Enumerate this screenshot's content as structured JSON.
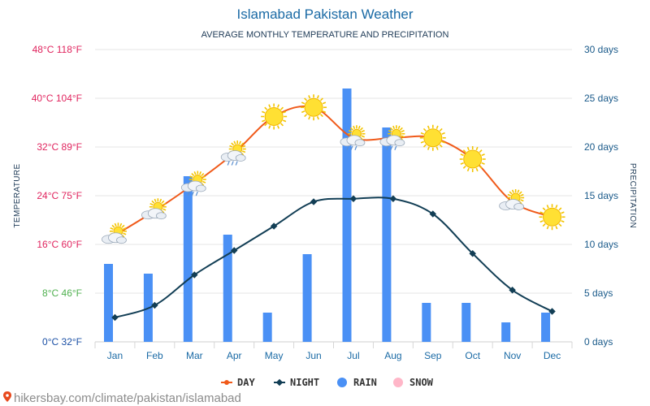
{
  "title": "Islamabad Pakistan Weather",
  "subtitle": "AVERAGE MONTHLY TEMPERATURE AND PRECIPITATION",
  "source": "hikersbay.com/climate/pakistan/islamabad",
  "colors": {
    "day": "#f05a1a",
    "night": "#123e55",
    "rain": "#4a90f5",
    "snow": "#ffb6c8"
  },
  "chart_data": {
    "type": "line",
    "categories": [
      "Jan",
      "Feb",
      "Mar",
      "Apr",
      "May",
      "Jun",
      "Jul",
      "Aug",
      "Sep",
      "Oct",
      "Nov",
      "Dec"
    ],
    "series": [
      {
        "name": "DAY",
        "type": "line",
        "axis": "temperature",
        "values": [
          17.5,
          21.5,
          26,
          31,
          37,
          38.5,
          33.5,
          33.5,
          33.5,
          30,
          23,
          20.5
        ]
      },
      {
        "name": "NIGHT",
        "type": "line",
        "axis": "temperature",
        "values": [
          4,
          6,
          11,
          15,
          19,
          23,
          23.5,
          23.5,
          21,
          14.5,
          8.5,
          5
        ]
      },
      {
        "name": "RAIN",
        "type": "bar",
        "axis": "precipitation",
        "values": [
          8,
          7,
          17,
          11,
          3,
          9,
          26,
          22,
          4,
          4,
          2,
          3
        ]
      },
      {
        "name": "SNOW",
        "type": "bar",
        "axis": "precipitation",
        "values": [
          0,
          0,
          0,
          0,
          0,
          0,
          0,
          0,
          0,
          0,
          0,
          0
        ]
      }
    ],
    "weather_icons": [
      "partly-cloudy",
      "partly-cloudy",
      "partly-cloudy-rain",
      "partly-cloudy-rain",
      "sunny",
      "sunny",
      "partly-cloudy-rain",
      "partly-cloudy-rain",
      "sunny",
      "sunny",
      "partly-cloudy",
      "sunny"
    ],
    "left_axis": {
      "label": "TEMPERATURE",
      "ylim": [
        0,
        48
      ],
      "ticks": [
        {
          "value": 0,
          "label": "0°C 32°F",
          "color": "#1a4fa5"
        },
        {
          "value": 8,
          "label": "8°C 46°F",
          "color": "#4fb04f"
        },
        {
          "value": 16,
          "label": "16°C 60°F",
          "color": "#e0245e"
        },
        {
          "value": 24,
          "label": "24°C 75°F",
          "color": "#e0245e"
        },
        {
          "value": 32,
          "label": "32°C 89°F",
          "color": "#e0245e"
        },
        {
          "value": 40,
          "label": "40°C 104°F",
          "color": "#e0245e"
        },
        {
          "value": 48,
          "label": "48°C 118°F",
          "color": "#e0245e"
        }
      ]
    },
    "right_axis": {
      "label": "PRECIPITATION",
      "ylim": [
        0,
        30
      ],
      "ticks": [
        {
          "value": 0,
          "label": "0 days"
        },
        {
          "value": 5,
          "label": "5 days"
        },
        {
          "value": 10,
          "label": "10 days"
        },
        {
          "value": 15,
          "label": "15 days"
        },
        {
          "value": 20,
          "label": "20 days"
        },
        {
          "value": 25,
          "label": "25 days"
        },
        {
          "value": 30,
          "label": "30 days"
        }
      ]
    },
    "grid": true,
    "legend_position": "bottom"
  }
}
